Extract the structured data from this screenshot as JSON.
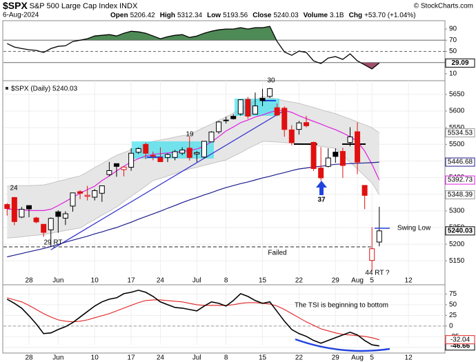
{
  "header": {
    "symbol": "$SPX",
    "name": "S&P 500 Large Cap Index",
    "exchange": "INDX",
    "date": "6-Aug-2024",
    "credit": "© StockCharts.com",
    "fields": [
      {
        "label": "Open",
        "value": "5206.42"
      },
      {
        "label": "High",
        "value": "5312.34"
      },
      {
        "label": "Low",
        "value": "5193.56"
      },
      {
        "label": "Close",
        "value": "5240.03"
      },
      {
        "label": "Volume",
        "value": "3.1B"
      },
      {
        "label": "Chg",
        "value": "+53.70 (+1.04%)"
      }
    ]
  },
  "chart_data": [
    {
      "type": "line",
      "color": "#000000",
      "xlim": [
        -0.5,
        60
      ],
      "ylim": [
        0,
        100
      ],
      "yticks": [
        10,
        30,
        50,
        70,
        90
      ],
      "ref_lines": [
        30,
        50,
        70
      ],
      "fill_colors": [
        "#4e8a55",
        "#a0506a"
      ],
      "values": [
        64,
        57.8,
        55,
        53,
        51.7,
        48,
        55,
        59,
        60,
        67.7,
        70,
        72.6,
        77.5,
        78.8,
        80,
        77.5,
        82.5,
        86,
        85,
        82.5,
        77.5,
        72.6,
        76.3,
        78.8,
        80,
        75,
        77.5,
        82.5,
        86,
        88.6,
        90,
        90,
        92.3,
        90,
        92.3,
        92.3,
        94.8,
        67.7,
        49,
        43,
        50.5,
        48,
        33,
        28.3,
        38,
        40.6,
        35.7,
        45.5,
        33,
        25.8,
        18.5,
        29.09
      ]
    },
    {
      "type": "candlestick",
      "title": "$SPX (Daily) 5240.03",
      "up_color": "#000000",
      "down_color": "#e01010",
      "grid": true,
      "xlim": [
        -0.5,
        60
      ],
      "ylim": [
        5105,
        5685
      ],
      "yticks": [
        5150,
        5200,
        5250,
        5300,
        5350,
        5400,
        5450,
        5500,
        5550,
        5600,
        5650
      ],
      "xticks": [
        {
          "value": 3,
          "label": "28"
        },
        {
          "value": 7,
          "label": "Jun"
        },
        {
          "value": 12,
          "label": "10"
        },
        {
          "value": 17,
          "label": "17"
        },
        {
          "value": 21,
          "label": "24"
        },
        {
          "value": 26,
          "label": "Jul"
        },
        {
          "value": 30,
          "label": "8"
        },
        {
          "value": 35,
          "label": "15"
        },
        {
          "value": 40,
          "label": "22"
        },
        {
          "value": 45,
          "label": "29"
        },
        {
          "value": 48,
          "label": "Aug"
        },
        {
          "value": 50,
          "label": "5"
        },
        {
          "value": 55,
          "label": "12"
        }
      ],
      "open": [
        5319.28,
        5340.26,
        5281.45,
        5315.91,
        5278.73,
        5259.77,
        5243.21,
        5297.15,
        5278.24,
        5314.48,
        5357.8,
        5343.81,
        5341.22,
        5353,
        5409.13,
        5441.93,
        5424.08,
        5431.11,
        5476.15,
        5499.99,
        5466.77,
        5459.58,
        5460.73,
        5460.71,
        5473.59,
        5488.48,
        5471.08,
        5461.84,
        5507.44,
        5537.91,
        5572.75,
        5584.24,
        5591.26,
        5635.21,
        5590.76,
        5638.16,
        5644.09,
        5610.07,
        5608.56,
        5543.37,
        5544.88,
        5565.3,
        5505.84,
        5428.7,
        5433.67,
        5476.55,
        5478.73,
        5505.59,
        5537.84,
        5376.63,
        5151.14,
        5206.42
      ],
      "high": [
        5323.18,
        5341.88,
        5311.65,
        5315.91,
        5282.27,
        5260.21,
        5280.33,
        5302.11,
        5298.8,
        5354.16,
        5362.35,
        5375.08,
        5365.79,
        5375.95,
        5447.25,
        5441.93,
        5432.39,
        5488.5,
        5490.38,
        5505.53,
        5478.31,
        5490.66,
        5472.88,
        5483.14,
        5490.81,
        5523.64,
        5479.55,
        5509.69,
        5539.27,
        5570.33,
        5583.11,
        5590.75,
        5635.39,
        5642.45,
        5655.56,
        5666.94,
        5669.67,
        5622.49,
        5614.05,
        5557.5,
        5570.36,
        5585.34,
        5508.04,
        5491.59,
        5488.32,
        5487.74,
        5489.5,
        5551.51,
        5566.16,
        5376.63,
        5250.89,
        5312.34
      ],
      "low": [
        5286.01,
        5256.93,
        5278.39,
        5280.89,
        5262.7,
        5222.1,
        5191.68,
        5234.32,
        5257.63,
        5297.64,
        5335.36,
        5331.33,
        5331.52,
        5327.25,
        5403.99,
        5402.51,
        5403.75,
        5420.4,
        5471.32,
        5455.56,
        5452.03,
        5446.56,
        5446.56,
        5451.87,
        5467.54,
        5451.12,
        5446.47,
        5458.43,
        5507.42,
        5531.63,
        5562.51,
        5574.57,
        5586.44,
        5576.53,
        5590.44,
        5614.75,
        5639.02,
        5584.81,
        5522.81,
        5497.04,
        5529.04,
        5550.86,
        5419.98,
        5390.95,
        5430.7,
        5444.44,
        5398.92,
        5493.75,
        5410.42,
        5305.05,
        5119.26,
        5193.56
      ],
      "close": [
        5307.01,
        5267.84,
        5304.72,
        5306.04,
        5266.95,
        5235.48,
        5277.51,
        5283.4,
        5291.34,
        5354.03,
        5352.96,
        5346.99,
        5360.79,
        5375.32,
        5421.03,
        5433.74,
        5431.6,
        5473.23,
        5487.03,
        5473.17,
        5464.62,
        5447.87,
        5469.3,
        5477.9,
        5482.87,
        5460.48,
        5475.09,
        5509.01,
        5537.02,
        5567.19,
        5572.85,
        5576.98,
        5633.91,
        5584.54,
        5615.35,
        5631.22,
        5667.2,
        5588.27,
        5544.59,
        5505,
        5564.41,
        5555.74,
        5427.13,
        5399.22,
        5459.1,
        5463.54,
        5436.44,
        5522.3,
        5446.68,
        5346.56,
        5186.33,
        5240.03
      ],
      "band": {
        "color": "#e6e6e6",
        "edge_color": "#c4c4c4",
        "upper": [
          5374,
          5375,
          5376,
          5376,
          5377,
          5378,
          5383,
          5389,
          5394,
          5400,
          5405,
          5417,
          5430,
          5442,
          5455,
          5467,
          5475,
          5484,
          5492,
          5501,
          5509,
          5513,
          5517,
          5522,
          5526,
          5530,
          5540,
          5551,
          5561,
          5572,
          5582,
          5594,
          5607,
          5619,
          5632,
          5644,
          5640,
          5636,
          5631,
          5627,
          5623,
          5617,
          5611,
          5604,
          5598,
          5592,
          5584,
          5576,
          5567,
          5559,
          5550,
          5534.53
        ],
        "lower": [
          5218,
          5220,
          5222,
          5225,
          5227,
          5229,
          5233,
          5237,
          5241,
          5245,
          5249,
          5262,
          5274,
          5287,
          5299,
          5312,
          5328,
          5344,
          5359,
          5375,
          5391,
          5398,
          5405,
          5412,
          5419,
          5426,
          5431,
          5437,
          5442,
          5448,
          5453,
          5464,
          5475,
          5487,
          5498,
          5509,
          5508,
          5507,
          5505,
          5504,
          5503,
          5500,
          5497,
          5494,
          5491,
          5488,
          5467,
          5446,
          5426,
          5405,
          5384,
          5348.39
        ]
      },
      "overlays": [
        {
          "color": "#e020e0",
          "values": [
            5306,
            5304,
            5304,
            5301,
            5301,
            5301,
            5305,
            5316,
            5328,
            5341,
            5353,
            5364,
            5374,
            5391,
            5405,
            5420,
            5434,
            5447,
            5457,
            5465,
            5470,
            5472,
            5474,
            5476,
            5478,
            5482,
            5486,
            5494,
            5507,
            5523,
            5540,
            5552,
            5565,
            5573,
            5582,
            5588,
            5596,
            5602,
            5602,
            5596,
            5586,
            5577,
            5569,
            5561,
            5552,
            5544,
            5534,
            5523,
            5509,
            5480,
            5440,
            5392.73
          ]
        },
        {
          "color": "#1c1c8c",
          "values": [
            5162,
            5167,
            5172,
            5177,
            5182,
            5187,
            5193,
            5199,
            5206,
            5212,
            5218,
            5224,
            5231,
            5237,
            5244,
            5250,
            5258,
            5266,
            5275,
            5283,
            5291,
            5299,
            5308,
            5316,
            5325,
            5333,
            5340,
            5348,
            5355,
            5363,
            5370,
            5376,
            5382,
            5387,
            5393,
            5399,
            5404,
            5410,
            5415,
            5421,
            5426,
            5429,
            5432,
            5434,
            5437,
            5440,
            5441,
            5442,
            5443,
            5444,
            5445,
            5446.68
          ]
        }
      ],
      "support_level": 5192,
      "trendline": {
        "color": "#3838d0",
        "x": [
          6,
          38
        ],
        "values": [
          5183,
          5602
        ]
      },
      "annotations": [
        {
          "text": "24",
          "color": "#2a2ab8"
        },
        {
          "text": "19",
          "color": "#2a2ab8"
        },
        {
          "text": "30",
          "color": "#2a2ab8"
        },
        {
          "text": "37",
          "color": "#2a2ab8"
        },
        {
          "text": "29 RT",
          "color": "#2a2ab8"
        },
        {
          "text": "Failed",
          "color": "#e02020"
        },
        {
          "text": "44 RT ?",
          "color": "#2a2ab8"
        },
        {
          "text": "Swing Low",
          "color": "#2a2ab8"
        }
      ]
    },
    {
      "type": "line",
      "grid": true,
      "xlim": [
        -0.5,
        60
      ],
      "ylim": [
        -60,
        95
      ],
      "yticks": [
        -50,
        -25,
        0,
        25,
        50,
        75
      ],
      "xticks": [
        {
          "value": 3,
          "label": "28"
        },
        {
          "value": 7,
          "label": "Jun"
        },
        {
          "value": 12,
          "label": "10"
        },
        {
          "value": 17,
          "label": "17"
        },
        {
          "value": 21,
          "label": "24"
        },
        {
          "value": 26,
          "label": "Jul"
        },
        {
          "value": 30,
          "label": "8"
        },
        {
          "value": 35,
          "label": "15"
        },
        {
          "value": 40,
          "label": "22"
        },
        {
          "value": 45,
          "label": "29"
        },
        {
          "value": 48,
          "label": "Aug"
        },
        {
          "value": 50,
          "label": "5"
        },
        {
          "value": 55,
          "label": "12"
        }
      ],
      "annotation": "The TSI is beginning to bottom",
      "series": [
        {
          "color": "#000000",
          "values": [
            62.9,
            53.2,
            41.9,
            24.2,
            4.8,
            -17.7,
            -16.1,
            -8.1,
            -1.6,
            8.1,
            21,
            33.9,
            46.8,
            56.5,
            62.9,
            66.1,
            75.8,
            79,
            83.9,
            79,
            69.4,
            56.5,
            50,
            43.5,
            41.9,
            38.7,
            35.5,
            46.8,
            56.5,
            53.2,
            46.8,
            59.7,
            75.8,
            69.4,
            59.7,
            53.2,
            56.5,
            33.9,
            11.3,
            -8.1,
            -17.7,
            -24.2,
            -33.9,
            -40.3,
            -33.9,
            -27.4,
            -21,
            -14.5,
            -21,
            -33.9,
            -44,
            -46.66
          ]
        },
        {
          "color": "#e02020",
          "values": [
            66.1,
            61.3,
            56.5,
            48.4,
            38.7,
            29,
            21,
            14.5,
            11.3,
            9.7,
            11.3,
            14.5,
            19.4,
            24.2,
            29,
            35.5,
            41.9,
            48.4,
            54.8,
            59.7,
            61.3,
            61.3,
            59.7,
            58.1,
            56.5,
            53.2,
            50,
            48.4,
            48.4,
            48.4,
            48.4,
            50,
            53.2,
            54.8,
            54.8,
            53.2,
            51.6,
            46.8,
            38.7,
            29,
            19.4,
            9.7,
            1.6,
            -6.5,
            -11.3,
            -16.1,
            -19.4,
            -21,
            -22.6,
            -24.2,
            -27.4,
            -32.04
          ]
        }
      ]
    }
  ]
}
